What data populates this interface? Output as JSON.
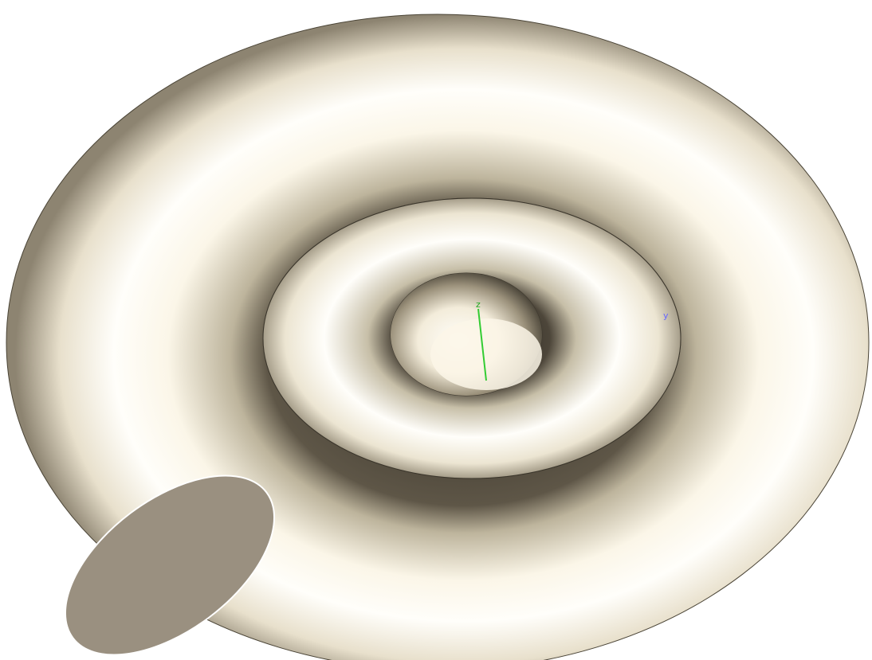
{
  "axes": {
    "z": "z",
    "y": "y"
  }
}
